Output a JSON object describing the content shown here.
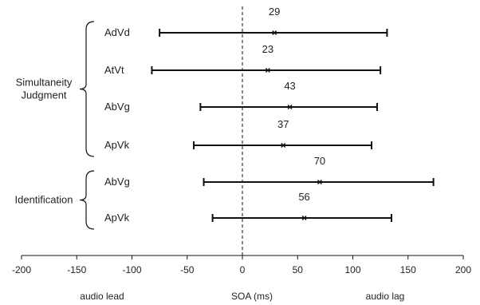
{
  "chart_data": {
    "type": "errorbar",
    "x_axis": {
      "range": [
        -200,
        200
      ],
      "ticks": [
        -200,
        -150,
        -100,
        -50,
        0,
        50,
        100,
        150,
        200
      ],
      "label_left": "audio lead",
      "label_center": "SOA (ms)",
      "label_right": "audio lag",
      "reference_line_at": 0
    },
    "groups": [
      {
        "name": "Simultaneity Judgment",
        "name_lines": [
          "Simultaneity",
          "Judgment"
        ],
        "rows": [
          0,
          1,
          2,
          3
        ]
      },
      {
        "name": "Identification",
        "name_lines": [
          "Identification"
        ],
        "rows": [
          4,
          5
        ]
      }
    ],
    "rows": [
      {
        "label": "AdVd",
        "low": -75,
        "center": 29,
        "high": 131,
        "value_label": "29"
      },
      {
        "label": "AtVt",
        "low": -82,
        "center": 23,
        "high": 125,
        "value_label": "23"
      },
      {
        "label": "AbVg",
        "low": -38,
        "center": 43,
        "high": 122,
        "value_label": "43"
      },
      {
        "label": "ApVk",
        "low": -44,
        "center": 37,
        "high": 117,
        "value_label": "37"
      },
      {
        "label": "AbVg",
        "low": -35,
        "center": 70,
        "high": 173,
        "value_label": "70"
      },
      {
        "label": "ApVk",
        "low": -27,
        "center": 56,
        "high": 135,
        "value_label": "56"
      }
    ],
    "colors": {
      "line": "#111111",
      "text": "#222222"
    }
  }
}
